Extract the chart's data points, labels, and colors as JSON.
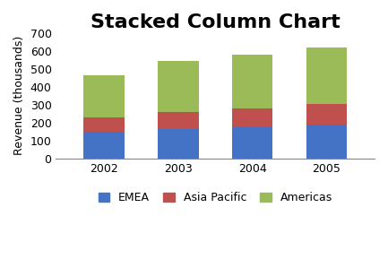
{
  "title": "Stacked Column Chart",
  "ylabel": "Revenue (thousands)",
  "categories": [
    "2002",
    "2003",
    "2004",
    "2005"
  ],
  "series": {
    "EMEA": [
      150,
      165,
      178,
      190
    ],
    "Asia Pacific": [
      78,
      93,
      102,
      112
    ],
    "Americas": [
      234,
      287,
      300,
      318
    ]
  },
  "colors": {
    "EMEA": "#4472C4",
    "Asia Pacific": "#C0504D",
    "Americas": "#9BBB59"
  },
  "ylim": [
    0,
    700
  ],
  "yticks": [
    0,
    100,
    200,
    300,
    400,
    500,
    600,
    700
  ],
  "bar_width": 0.55,
  "background_color": "#FFFFFF",
  "plot_area_color": "#FFFFFF",
  "title_fontsize": 16,
  "axis_fontsize": 9,
  "legend_fontsize": 9
}
